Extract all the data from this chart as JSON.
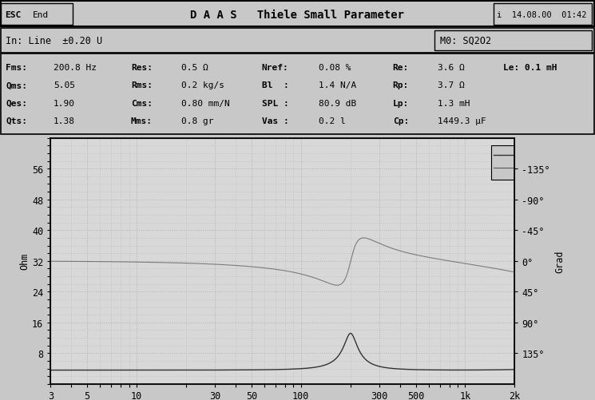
{
  "bg_color": "#c8c8c8",
  "plot_bg_color": "#d8d8d8",
  "border_color": "#000000",
  "text_color": "#000000",
  "title_bar": "D A A S   Thiele Small Parameter",
  "esc_text": "ESC  End",
  "info_text": "i  14.08.00  01:42",
  "input_text": "In: Line  ±0.20 U",
  "m0_text": "M0: SQ2O2",
  "params": [
    [
      "Fms:",
      "200.8 Hz",
      "Res:",
      "0.5 Ω",
      "Nref:",
      "0.08 %",
      "Re:",
      "3.6 Ω",
      "Le: 0.1 mH"
    ],
    [
      "Qms:",
      "5.05",
      "Rms:",
      "0.2 kg/s",
      "Bl  :",
      "1.4 N/A",
      "Rp:",
      "3.7 Ω",
      ""
    ],
    [
      "Qes:",
      "1.90",
      "Cms:",
      "0.80 mm/N",
      "SPL :",
      "80.9 dB",
      "Lp:",
      "1.3 mH",
      ""
    ],
    [
      "Qts:",
      "1.38",
      "Mms:",
      "0.8 gr",
      "Vas :",
      "0.2 l",
      "Cp:",
      "1449.3 μF",
      ""
    ]
  ],
  "y_label_left": "Ohm",
  "y_label_right": "Grad",
  "y_ticks_left": [
    8,
    16,
    24,
    32,
    40,
    48,
    56
  ],
  "y_ticks_right": [
    "135°",
    "90°",
    "45°",
    "0°",
    "-45°",
    "-90°",
    "-135°"
  ],
  "x_ticks": [
    3,
    5,
    10,
    30,
    50,
    100,
    300,
    500,
    1000,
    2000
  ],
  "x_tick_labels": [
    "3",
    "5",
    "10",
    "30",
    "50",
    "100",
    "300",
    "500",
    "1k",
    "2k"
  ],
  "x_min": 3,
  "x_max": 2000,
  "y_min": 0,
  "y_max": 64,
  "resonance_freq": 200.8,
  "Re": 3.6,
  "peak_impedance": 13.5,
  "dot_color": "#555555",
  "line_color": "#333333",
  "grid_color": "#aaaaaa",
  "legend_box_color": "#c8c8c8"
}
